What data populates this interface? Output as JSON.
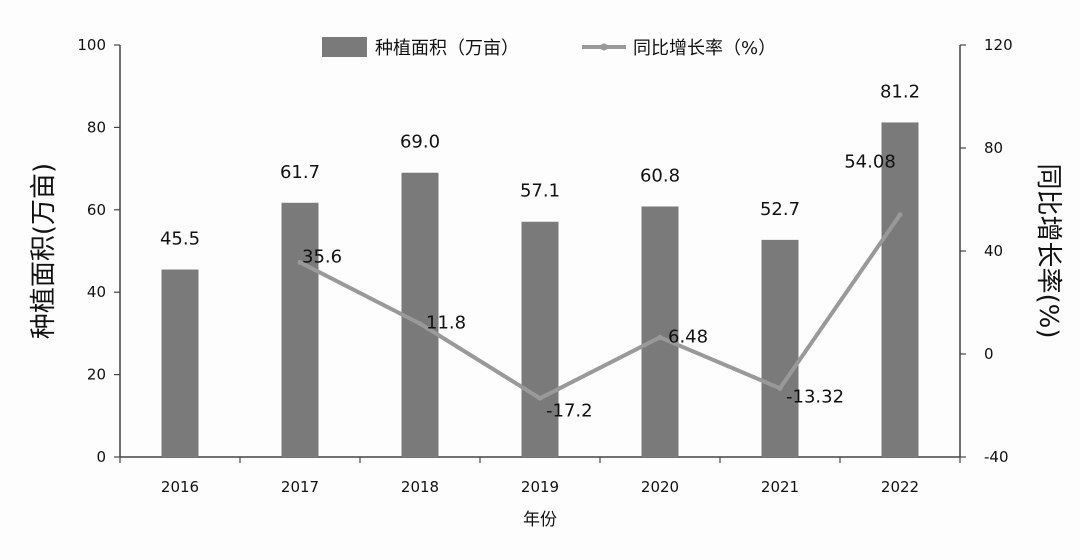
{
  "chart_data": {
    "type": "bar",
    "categories": [
      "2016",
      "2017",
      "2018",
      "2019",
      "2020",
      "2021",
      "2022"
    ],
    "series": [
      {
        "name": "种植面积（万亩）",
        "type": "bar",
        "axis": "left",
        "values": [
          45.5,
          61.7,
          69.0,
          57.1,
          60.8,
          52.7,
          81.2
        ],
        "labels": [
          "45.5",
          "61.7",
          "69.0",
          "57.1",
          "60.8",
          "52.7",
          "81.2"
        ]
      },
      {
        "name": "同比增长率（%）",
        "type": "line",
        "axis": "right",
        "values": [
          null,
          35.6,
          11.8,
          -17.2,
          6.48,
          -13.32,
          54.08
        ],
        "labels": [
          "",
          "35.6",
          "11.8",
          "-17.2",
          "6.48",
          "-13.32",
          "54.08"
        ]
      }
    ],
    "xlabel": "年份",
    "ylabel": "种植面积(万亩)",
    "y2label": "同比增长率(%)",
    "ylim": [
      0,
      100
    ],
    "yticks": [
      "0",
      "20",
      "40",
      "60",
      "80",
      "100"
    ],
    "y2lim": [
      -40,
      120
    ],
    "y2ticks": [
      "-40",
      "0",
      "40",
      "80",
      "120"
    ],
    "grid": false,
    "legend_position": "top",
    "colors": {
      "bar": "#7a7a7a",
      "line": "#999999",
      "axis": "#444444"
    }
  }
}
